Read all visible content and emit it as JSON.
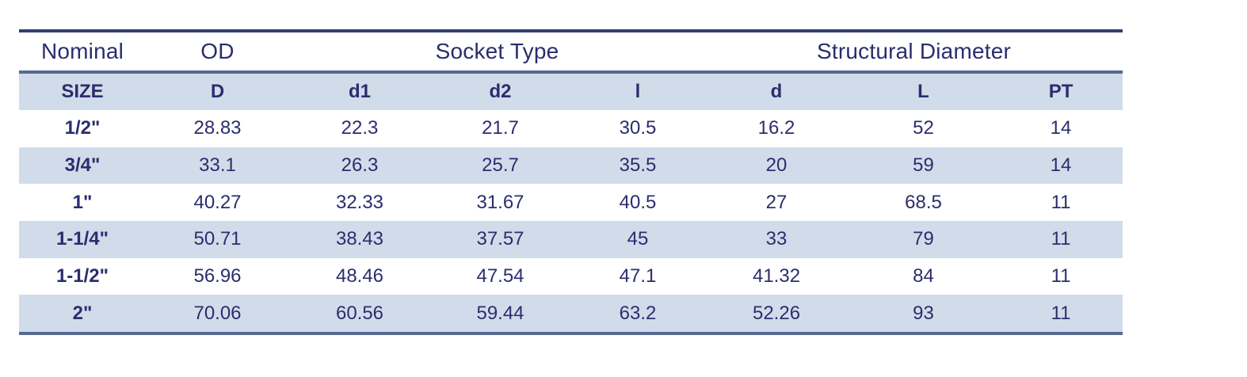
{
  "colors": {
    "text": "#2b2d6e",
    "stripe": "#d1dcea",
    "rule_top": "#2e3e6e",
    "rule": "#56698f"
  },
  "group_headers": {
    "nominal": "Nominal",
    "od": "OD",
    "socket_type": "Socket Type",
    "structural_diameter": "Structural Diameter"
  },
  "sub_headers": [
    "SIZE",
    "D",
    "d1",
    "d2",
    "l",
    "d",
    "L",
    "PT"
  ],
  "rows": [
    [
      "1/2\"",
      "28.83",
      "22.3",
      "21.7",
      "30.5",
      "16.2",
      "52",
      "14"
    ],
    [
      "3/4\"",
      "33.1",
      "26.3",
      "25.7",
      "35.5",
      "20",
      "59",
      "14"
    ],
    [
      "1\"",
      "40.27",
      "32.33",
      "31.67",
      "40.5",
      "27",
      "68.5",
      "11"
    ],
    [
      "1-1/4\"",
      "50.71",
      "38.43",
      "37.57",
      "45",
      "33",
      "79",
      "11"
    ],
    [
      "1-1/2\"",
      "56.96",
      "48.46",
      "47.54",
      "47.1",
      "41.32",
      "84",
      "11"
    ],
    [
      "2\"",
      "70.06",
      "60.56",
      "59.44",
      "63.2",
      "52.26",
      "93",
      "11"
    ]
  ]
}
